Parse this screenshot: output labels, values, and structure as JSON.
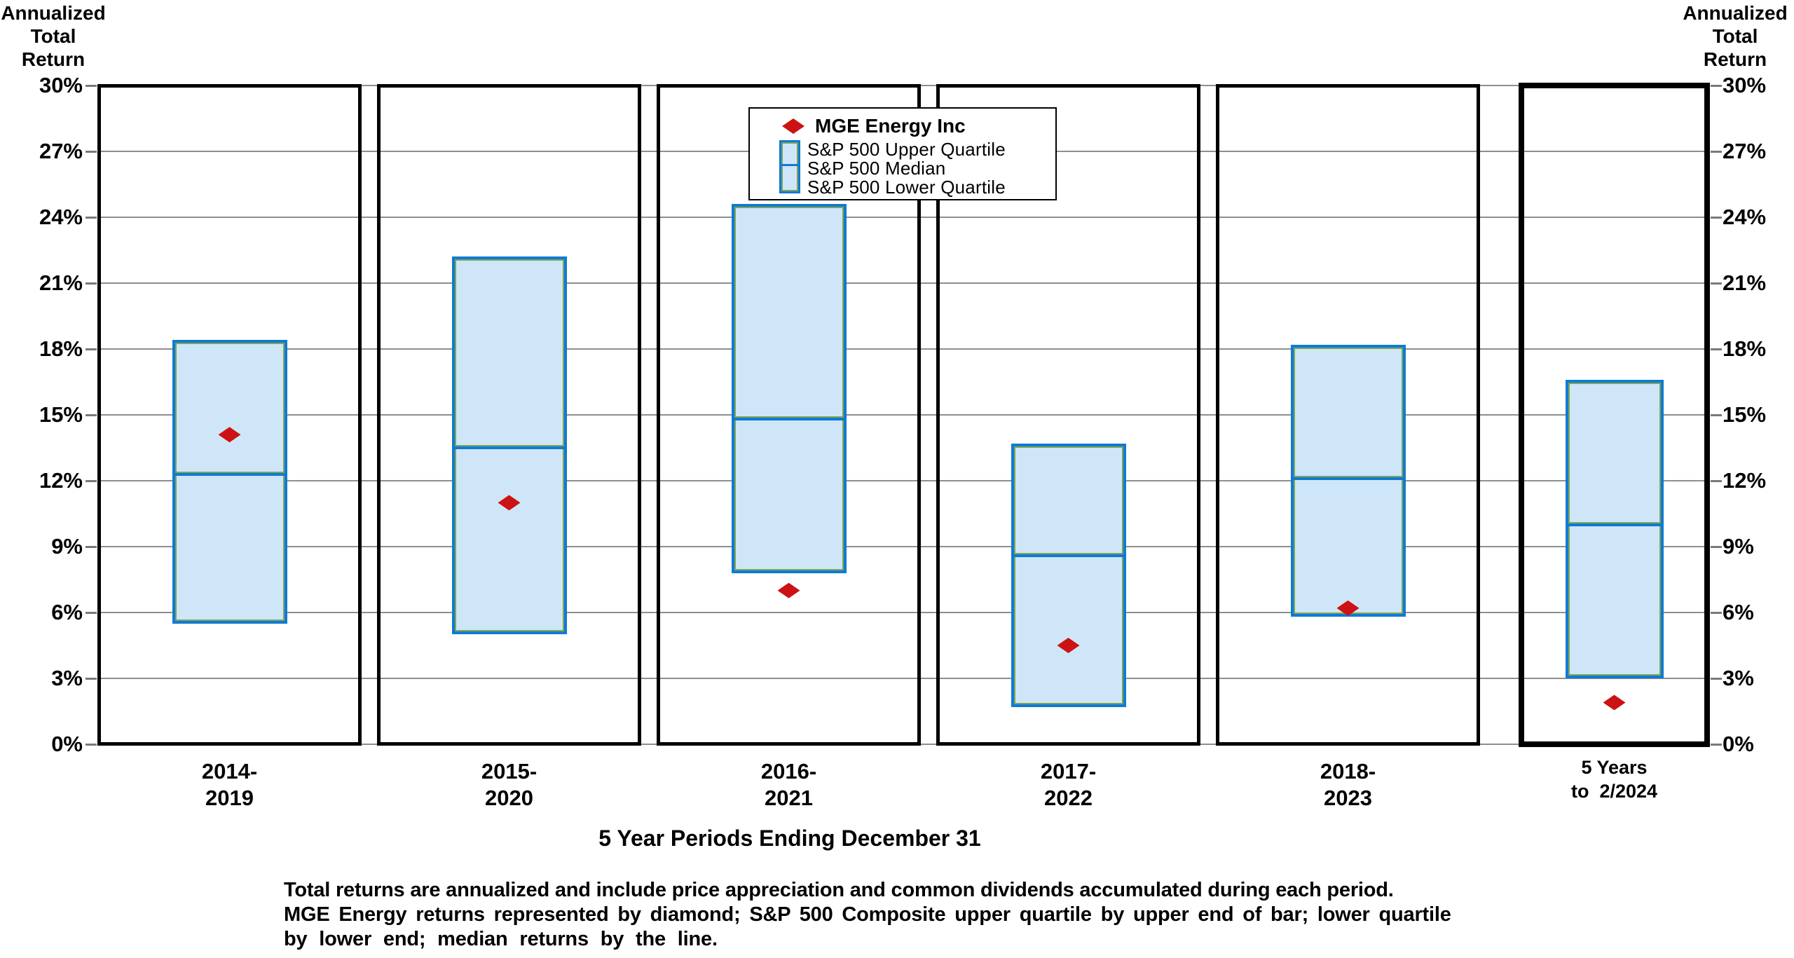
{
  "y_axis": {
    "title_lines": [
      "Annualized",
      "Total",
      "Return"
    ],
    "ticks": [
      "30%",
      "27%",
      "24%",
      "21%",
      "18%",
      "15%",
      "12%",
      "9%",
      "6%",
      "3%",
      "0%"
    ]
  },
  "x_axis": {
    "title": "5 Year Periods Ending December 31"
  },
  "legend": {
    "mge": "MGE Energy Inc",
    "upper": "S&P 500 Upper Quartile",
    "median": "S&P 500 Median",
    "lower": "S&P 500 Lower Quartile"
  },
  "footnote_lines": [
    "Total returns are annualized and include price appreciation and common dividends accumulated during each period.",
    "MGE Energy returns represented by diamond; S&P 500 Composite upper quartile by upper end of bar; lower quartile",
    "by lower end; median returns by the line."
  ],
  "chart_data": {
    "type": "box",
    "title": "",
    "ylabel": "Annualized Total Return",
    "xlabel": "5 Year Periods Ending December 31",
    "ylim": [
      0,
      30
    ],
    "ytick_step": 3,
    "grid": true,
    "legend_position": "top-center",
    "categories": [
      "2014-2019",
      "2015-2020",
      "2016-2021",
      "2017-2022",
      "2018-2023",
      "5 Years to 2/2024"
    ],
    "series": [
      {
        "name": "MGE Energy Inc",
        "role": "point",
        "values": [
          14.1,
          11.0,
          7.0,
          4.5,
          6.2,
          1.9
        ]
      },
      {
        "name": "S&P 500 Upper Quartile",
        "role": "box-top",
        "values": [
          18.4,
          22.2,
          24.6,
          13.7,
          18.2,
          16.6
        ]
      },
      {
        "name": "S&P 500 Median",
        "role": "box-median",
        "values": [
          12.3,
          13.5,
          14.8,
          8.6,
          12.1,
          10.0
        ]
      },
      {
        "name": "S&P 500 Lower Quartile",
        "role": "box-bottom",
        "values": [
          5.5,
          5.0,
          7.8,
          1.7,
          5.8,
          3.0
        ]
      }
    ],
    "panels": [
      {
        "label": [
          "2014-",
          "2019"
        ],
        "upper": 18.4,
        "median": 12.3,
        "lower": 5.5,
        "mge": 14.1,
        "highlight": false
      },
      {
        "label": [
          "2015-",
          "2020"
        ],
        "upper": 22.2,
        "median": 13.5,
        "lower": 5.0,
        "mge": 11.0,
        "highlight": false
      },
      {
        "label": [
          "2016-",
          "2021"
        ],
        "upper": 24.6,
        "median": 14.8,
        "lower": 7.8,
        "mge": 7.0,
        "highlight": false
      },
      {
        "label": [
          "2017-",
          "2022"
        ],
        "upper": 13.7,
        "median": 8.6,
        "lower": 1.7,
        "mge": 4.5,
        "highlight": false
      },
      {
        "label": [
          "2018-",
          "2023"
        ],
        "upper": 18.2,
        "median": 12.1,
        "lower": 5.8,
        "mge": 6.2,
        "highlight": false
      },
      {
        "label": [
          "5 Years",
          "to  2/2024"
        ],
        "upper": 16.6,
        "median": 10.0,
        "lower": 3.0,
        "mge": 1.9,
        "highlight": true
      }
    ],
    "colors": {
      "box_fill": "#cfe6f8",
      "box_border": "#0f7ad6",
      "box_inner_edge": "#7ea651",
      "diamond": "#cc1212",
      "gridline": "#8e8e8e",
      "panel_border": "#000000"
    }
  }
}
